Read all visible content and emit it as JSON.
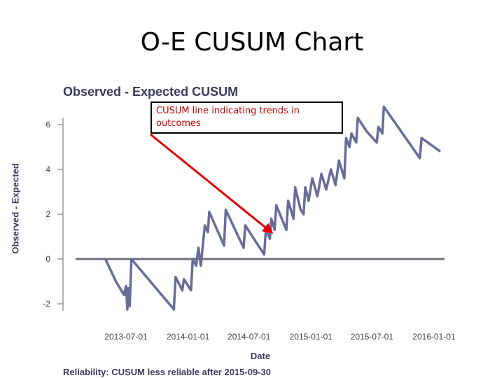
{
  "slide": {
    "title": "O-E CUSUM Chart"
  },
  "callout": {
    "text": "CUSUM line indicating trends in outcomes"
  },
  "reliability_note": "Reliability: CUSUM less reliable after 2015-09-30",
  "colors": {
    "line": "#6b6b9a",
    "baseline": "#6f6f7f",
    "arrow": "#e00000",
    "axis_text": "#3a3a5c"
  },
  "chart_data": {
    "type": "line",
    "title": "Observed - Expected CUSUM",
    "xlabel": "Date",
    "ylabel": "Observed - Expected",
    "xtick_labels": [
      "2013-07-01",
      "2014-01-01",
      "2014-07-01",
      "2015-01-01",
      "2015-07-01",
      "2016-01-01"
    ],
    "ylim": [
      -2.3,
      6.8
    ],
    "yticks": [
      -2,
      0,
      2,
      4,
      6
    ],
    "x_range": [
      "2013-05-01",
      "2016-02-15"
    ],
    "grid": false,
    "baseline": 0,
    "series": [
      {
        "points": [
          [
            "2013-05-01",
            0.0
          ],
          [
            "2013-06-01",
            -1.0
          ],
          [
            "2013-06-25",
            -1.6
          ],
          [
            "2013-07-01",
            -1.2
          ],
          [
            "2013-07-05",
            -2.25
          ],
          [
            "2013-07-08",
            -1.3
          ],
          [
            "2013-07-12",
            -2.1
          ],
          [
            "2013-07-17",
            0.0
          ],
          [
            "2013-11-20",
            -2.25
          ],
          [
            "2013-11-25",
            -0.8
          ],
          [
            "2013-12-15",
            -1.4
          ],
          [
            "2013-12-20",
            -0.9
          ],
          [
            "2014-01-10",
            -1.4
          ],
          [
            "2014-01-15",
            0.0
          ],
          [
            "2014-01-25",
            -0.3
          ],
          [
            "2014-02-01",
            0.5
          ],
          [
            "2014-02-08",
            -0.3
          ],
          [
            "2014-02-20",
            1.5
          ],
          [
            "2014-03-01",
            1.2
          ],
          [
            "2014-03-05",
            2.1
          ],
          [
            "2014-04-18",
            0.6
          ],
          [
            "2014-04-23",
            2.2
          ],
          [
            "2014-06-15",
            0.5
          ],
          [
            "2014-06-20",
            1.5
          ],
          [
            "2014-07-20",
            0.8
          ],
          [
            "2014-08-15",
            0.2
          ],
          [
            "2014-08-20",
            1.3
          ],
          [
            "2014-09-01",
            0.9
          ],
          [
            "2014-09-05",
            1.8
          ],
          [
            "2014-09-15",
            1.3
          ],
          [
            "2014-09-20",
            2.4
          ],
          [
            "2014-10-20",
            1.3
          ],
          [
            "2014-10-25",
            2.6
          ],
          [
            "2014-11-10",
            1.8
          ],
          [
            "2014-11-15",
            3.2
          ],
          [
            "2014-12-01",
            2.2
          ],
          [
            "2014-12-10",
            2.0
          ],
          [
            "2014-12-15",
            3.2
          ],
          [
            "2014-12-25",
            2.6
          ],
          [
            "2015-01-05",
            3.6
          ],
          [
            "2015-01-20",
            2.8
          ],
          [
            "2015-02-01",
            3.8
          ],
          [
            "2015-02-15",
            3.1
          ],
          [
            "2015-03-01",
            4.0
          ],
          [
            "2015-03-15",
            3.3
          ],
          [
            "2015-03-25",
            4.4
          ],
          [
            "2015-04-10",
            3.6
          ],
          [
            "2015-04-15",
            5.4
          ],
          [
            "2015-04-25",
            5.0
          ],
          [
            "2015-05-01",
            5.6
          ],
          [
            "2015-05-15",
            5.2
          ],
          [
            "2015-05-20",
            6.3
          ],
          [
            "2015-06-15",
            5.7
          ],
          [
            "2015-07-15",
            5.2
          ],
          [
            "2015-07-20",
            5.9
          ],
          [
            "2015-08-01",
            5.6
          ],
          [
            "2015-08-05",
            6.8
          ],
          [
            "2015-11-20",
            4.5
          ],
          [
            "2015-11-25",
            5.4
          ],
          [
            "2016-01-20",
            4.8
          ]
        ]
      }
    ]
  }
}
